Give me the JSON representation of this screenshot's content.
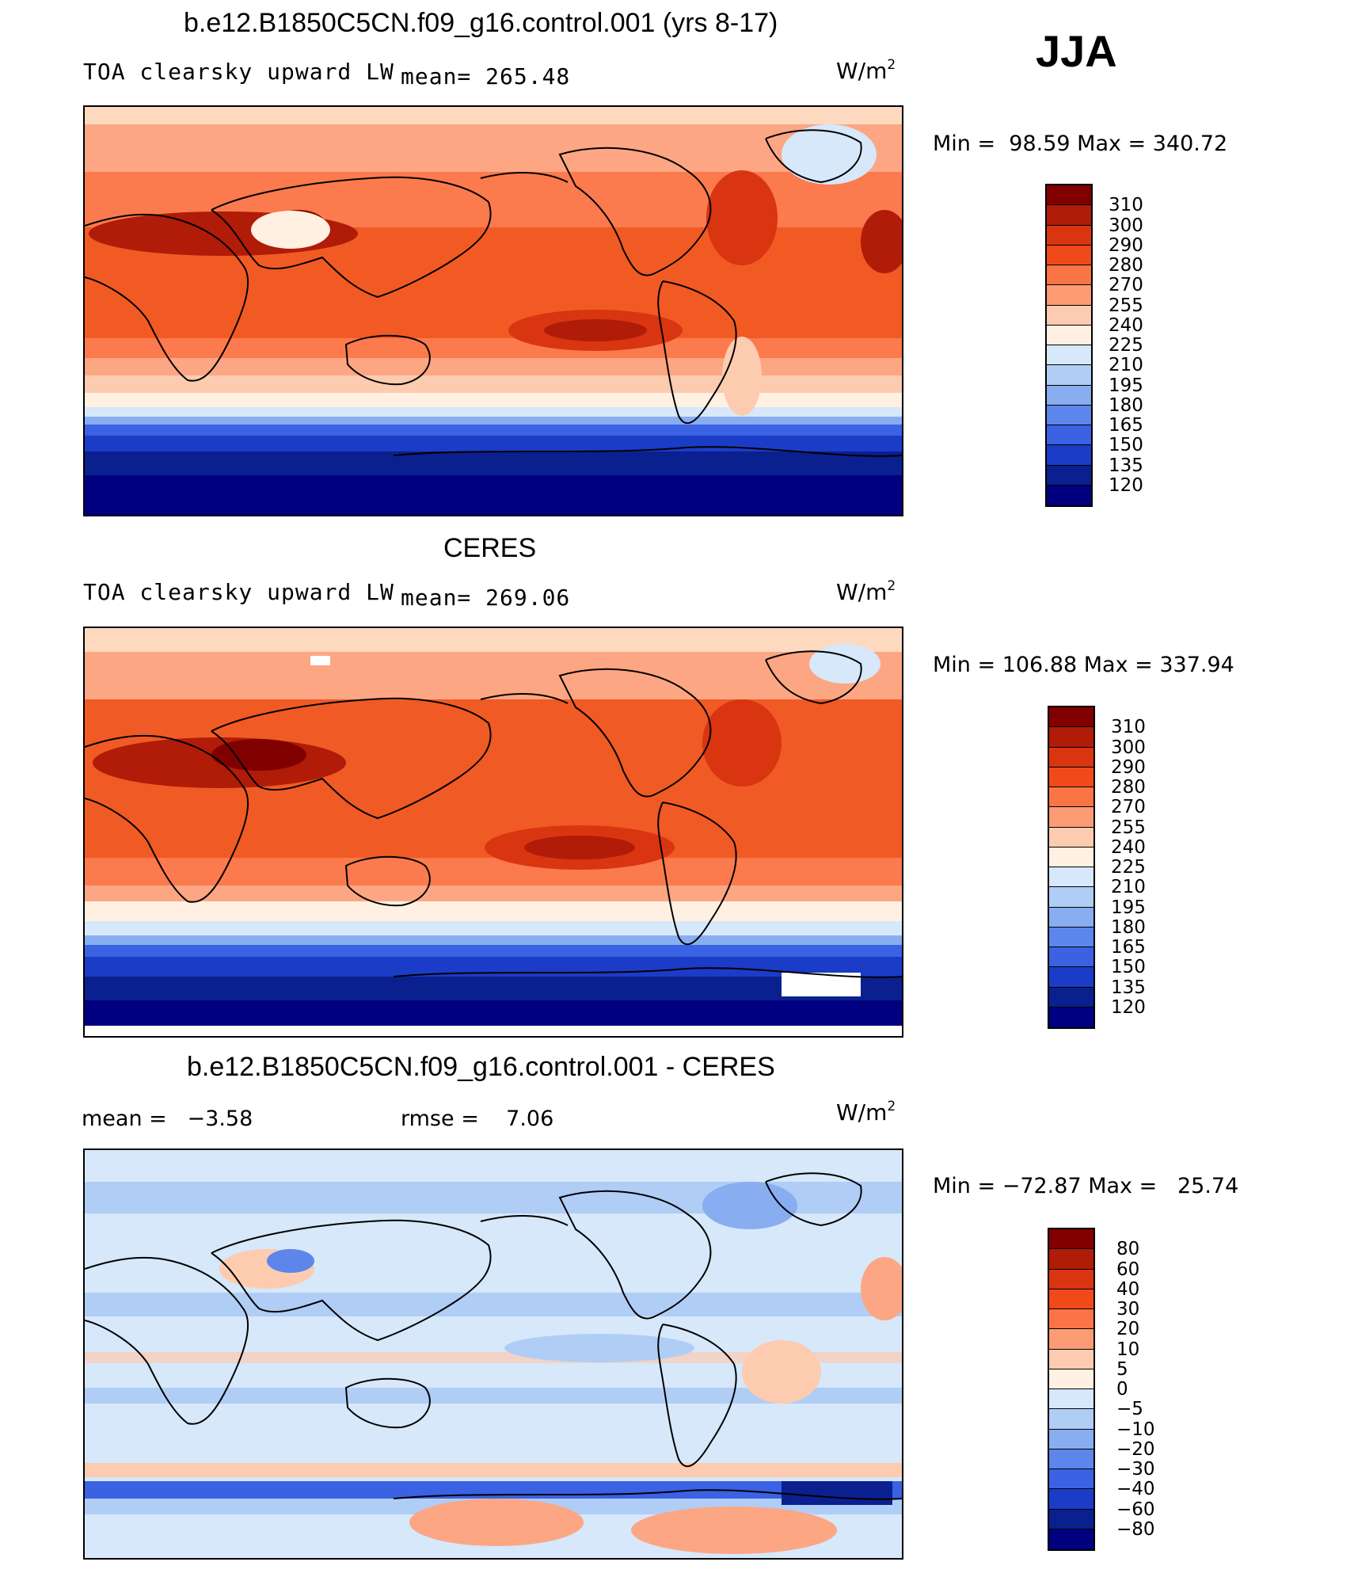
{
  "season": "JJA",
  "units_base": "W/m",
  "units_exp": "2",
  "panels": [
    {
      "title": "b.e12.B1850C5CN.f09_g16.control.001 (yrs 8-17)",
      "field": "TOA clearsky upward LW",
      "stat1": "mean= 265.48",
      "stat2": "",
      "minmax": "Min =  98.59 Max = 340.72",
      "colorbar_labels": [
        "310",
        "300",
        "290",
        "280",
        "270",
        "255",
        "240",
        "225",
        "210",
        "195",
        "180",
        "165",
        "150",
        "135",
        "120"
      ],
      "colorbar_colors": [
        "#800000",
        "#b01c08",
        "#d93510",
        "#f04a1a",
        "#fb7446",
        "#fc9b74",
        "#fdcbb0",
        "#fff0e2",
        "#d6e8fa",
        "#b0cdf5",
        "#88adf0",
        "#5c86ec",
        "#3a62e2",
        "#1b3cc7",
        "#0a208f",
        "#000080"
      ]
    },
    {
      "title": "CERES",
      "field": "TOA clearsky upward LW",
      "stat1": "mean= 269.06",
      "stat2": "",
      "minmax": "Min = 106.88 Max = 337.94",
      "colorbar_labels": [
        "310",
        "300",
        "290",
        "280",
        "270",
        "255",
        "240",
        "225",
        "210",
        "195",
        "180",
        "165",
        "150",
        "135",
        "120"
      ],
      "colorbar_colors": [
        "#800000",
        "#b01c08",
        "#d93510",
        "#f04a1a",
        "#fb7446",
        "#fc9b74",
        "#fdcbb0",
        "#fff0e2",
        "#d6e8fa",
        "#b0cdf5",
        "#88adf0",
        "#5c86ec",
        "#3a62e2",
        "#1b3cc7",
        "#0a208f",
        "#000080"
      ]
    },
    {
      "title": "b.e12.B1850C5CN.f09_g16.control.001 - CERES",
      "field": "",
      "stat1": "mean =   −3.58",
      "stat2": "rmse =    7.06",
      "minmax": "Min = −72.87 Max =   25.74",
      "colorbar_labels": [
        "80",
        "60",
        "40",
        "30",
        "20",
        "10",
        "5",
        "0",
        "−5",
        "−10",
        "−20",
        "−30",
        "−40",
        "−60",
        "−80"
      ],
      "colorbar_colors": [
        "#800000",
        "#b01c08",
        "#d93510",
        "#f04a1a",
        "#fb7446",
        "#fc9b74",
        "#fdcbb0",
        "#fff0e2",
        "#d6e8fa",
        "#b0cdf5",
        "#88adf0",
        "#5c86ec",
        "#3a62e2",
        "#1b3cc7",
        "#0a208f",
        "#000080"
      ]
    }
  ]
}
